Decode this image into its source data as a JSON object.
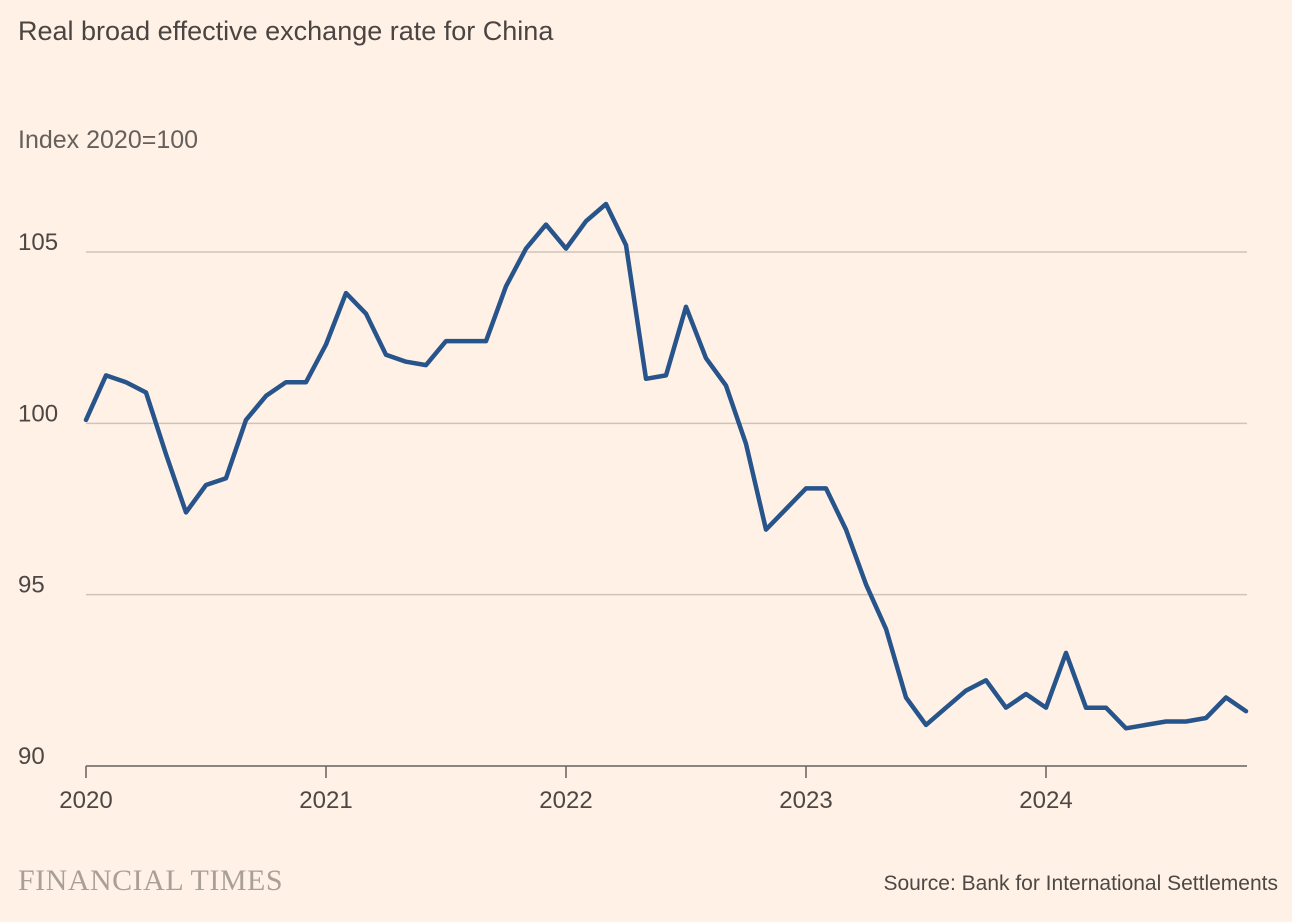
{
  "chart_data": {
    "type": "line",
    "title": "Real broad effective exchange rate for China",
    "subtitle": "Index 2020=100",
    "xlabel": "",
    "ylabel": "",
    "x_ticks": [
      "2020",
      "2021",
      "2022",
      "2023",
      "2024"
    ],
    "y_ticks": [
      90,
      95,
      100,
      105
    ],
    "ylim": [
      90,
      107
    ],
    "grid": true,
    "color": "#27548a",
    "x_start": "2020-01",
    "x_step": "month",
    "series": [
      {
        "values": [
          100.1,
          101.4,
          101.2,
          100.9,
          99.1,
          97.4,
          98.2,
          98.4,
          100.1,
          100.8,
          101.2,
          101.2,
          102.3,
          103.8,
          103.2,
          102.0,
          101.8,
          101.7,
          102.4,
          102.4,
          102.4,
          104.0,
          105.1,
          105.8,
          105.1,
          105.9,
          106.4,
          105.2,
          101.3,
          101.4,
          103.4,
          101.9,
          101.1,
          99.4,
          96.9,
          97.5,
          98.1,
          98.1,
          96.9,
          95.3,
          94.0,
          92.0,
          91.2,
          91.7,
          92.2,
          92.5,
          91.7,
          92.1,
          91.7,
          93.3,
          91.7,
          91.7,
          91.1,
          91.2,
          91.3,
          91.3,
          91.4,
          92.0,
          91.6
        ]
      }
    ]
  },
  "footer": {
    "brand": "FINANCIAL TIMES",
    "source": "Source: Bank for International Settlements"
  }
}
